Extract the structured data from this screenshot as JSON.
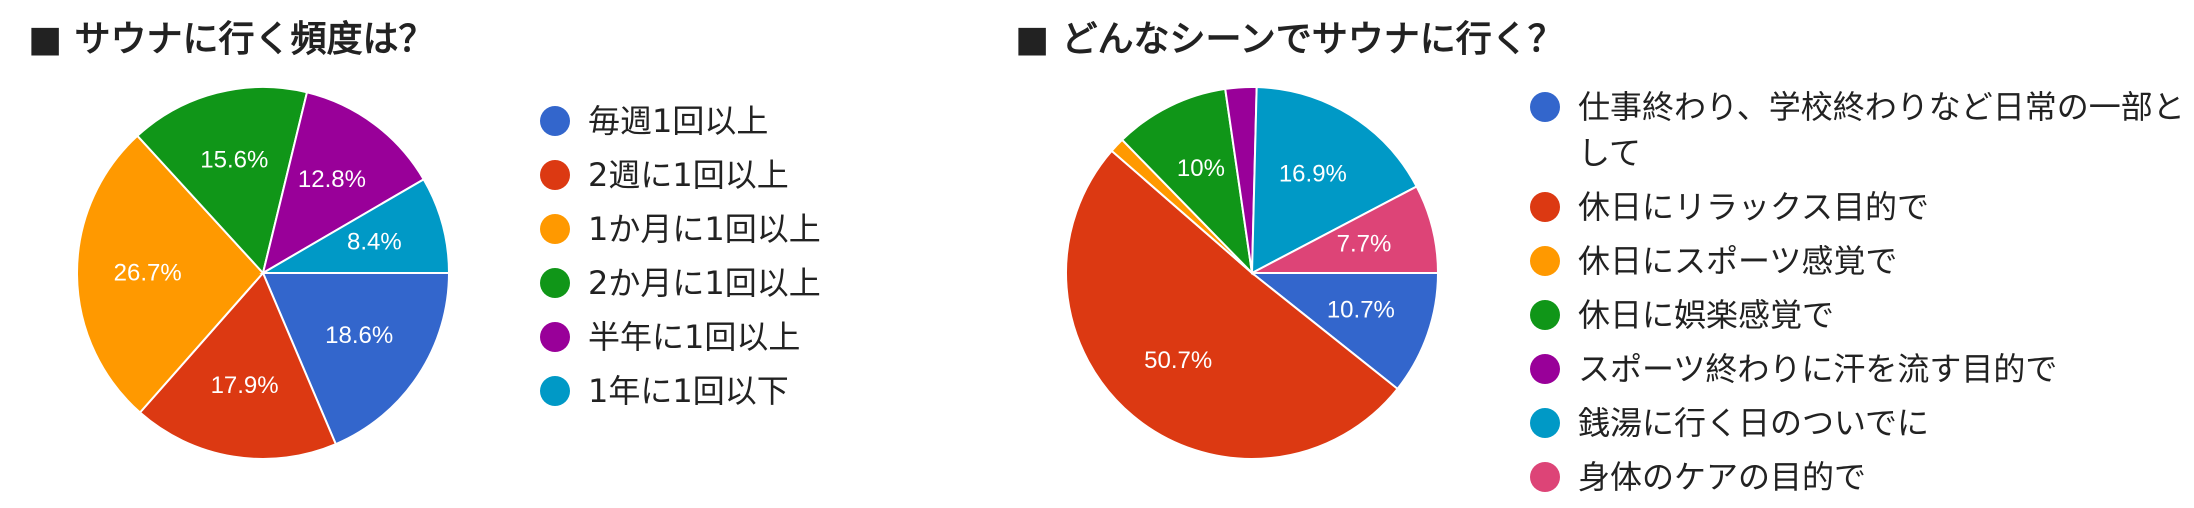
{
  "charts": [
    {
      "title": "■ サウナに行く頻度は？"
    },
    {
      "title": "■ どんなシーンでサウナに行く？"
    }
  ],
  "chart_data": [
    {
      "type": "pie",
      "title": "■ サウナに行く頻度は？",
      "legend_position": "right",
      "slices": [
        {
          "label": "毎週1回以上",
          "value": 18.6,
          "display": "18.6%",
          "color": "#3366cc"
        },
        {
          "label": "2週に1回以上",
          "value": 17.9,
          "display": "17.9%",
          "color": "#dc3912"
        },
        {
          "label": "1か月に1回以上",
          "value": 26.7,
          "display": "26.7%",
          "color": "#ff9900"
        },
        {
          "label": "2か月に1回以上",
          "value": 15.6,
          "display": "15.6%",
          "color": "#109618"
        },
        {
          "label": "半年に1回以上",
          "value": 12.8,
          "display": "12.8%",
          "color": "#990099"
        },
        {
          "label": "1年に1回以下",
          "value": 8.4,
          "display": "8.4%",
          "color": "#0099c6"
        }
      ]
    },
    {
      "type": "pie",
      "title": "■ どんなシーンでサウナに行く？",
      "legend_position": "right",
      "slices": [
        {
          "label": "仕事終わり、学校終わりなど日常の一部として",
          "value": 10.7,
          "display": "10.7%",
          "color": "#3366cc"
        },
        {
          "label": "休日にリラックス目的で",
          "value": 50.7,
          "display": "50.7%",
          "color": "#dc3912"
        },
        {
          "label": "休日にスポーツ感覚で",
          "value": 1.3,
          "display": "",
          "color": "#ff9900"
        },
        {
          "label": "休日に娯楽感覚で",
          "value": 10,
          "display": "10%",
          "color": "#109618"
        },
        {
          "label": "スポーツ終わりに汗を流す目的で",
          "value": 2.7,
          "display": "",
          "color": "#990099"
        },
        {
          "label": "銭湯に行く日のついでに",
          "value": 16.9,
          "display": "16.9%",
          "color": "#0099c6"
        },
        {
          "label": "身体のケアの目的で",
          "value": 7.7,
          "display": "7.7%",
          "color": "#dd4477"
        }
      ]
    }
  ]
}
